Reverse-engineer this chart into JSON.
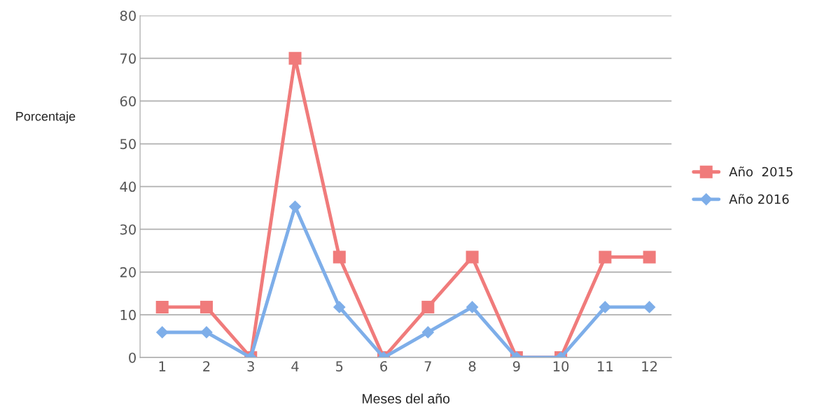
{
  "chart_data": {
    "type": "line",
    "xlabel": "Meses del año",
    "ylabel": "Porcentaje",
    "categories": [
      "1",
      "2",
      "3",
      "4",
      "5",
      "6",
      "7",
      "8",
      "9",
      "10",
      "11",
      "12"
    ],
    "series": [
      {
        "name": "Año  2015",
        "color": "#f07b7b",
        "marker": "square",
        "values": [
          11.8,
          11.8,
          0,
          70,
          23.5,
          0,
          11.8,
          23.5,
          0,
          0,
          23.5,
          23.5
        ]
      },
      {
        "name": "Año 2016",
        "color": "#7eaee9",
        "marker": "diamond",
        "values": [
          5.9,
          5.9,
          0,
          35.3,
          11.8,
          0,
          5.9,
          11.8,
          0,
          0,
          11.8,
          11.8
        ]
      }
    ],
    "ylim": [
      0,
      80
    ],
    "yticks": [
      0,
      10,
      20,
      30,
      40,
      50,
      60,
      70,
      80
    ],
    "grid": "y",
    "legend": "right",
    "line_style": "solid"
  }
}
